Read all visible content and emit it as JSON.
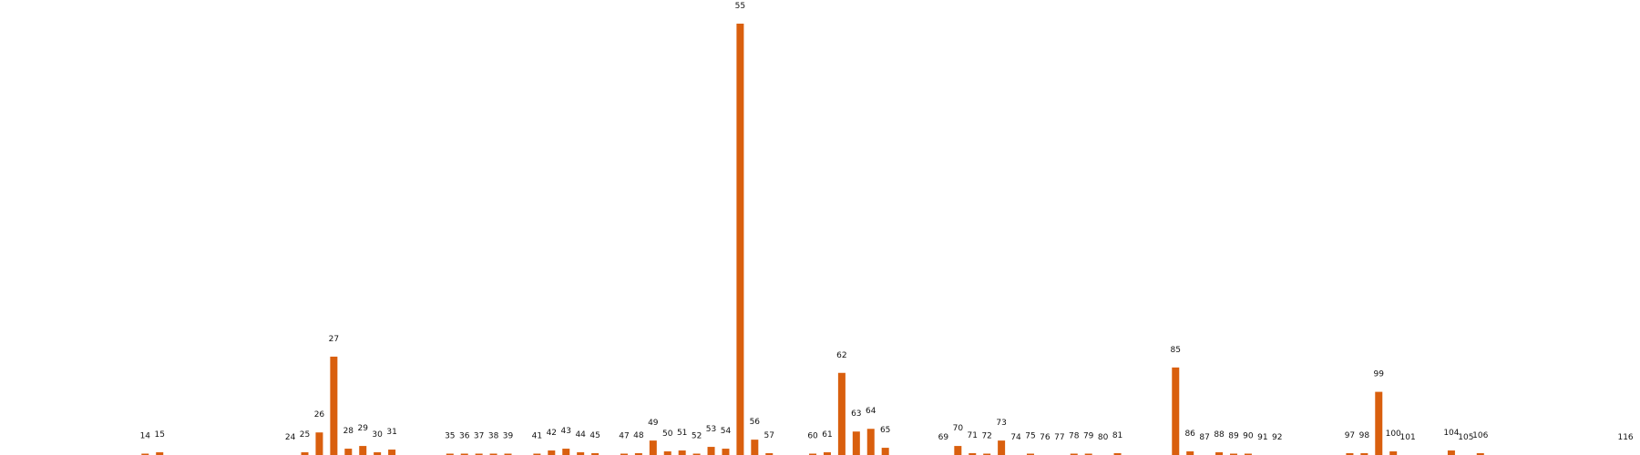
{
  "chart_data": {
    "type": "bar",
    "title": "",
    "xlabel": "",
    "ylabel": "",
    "grid": false,
    "legend": "none",
    "bar_color": "#d95f0e",
    "x_range": [
      4,
      117
    ],
    "ylim": [
      0,
      480
    ],
    "x": [
      14,
      15,
      24,
      25,
      26,
      27,
      28,
      29,
      30,
      31,
      35,
      36,
      37,
      38,
      39,
      41,
      42,
      43,
      44,
      45,
      47,
      48,
      49,
      50,
      51,
      52,
      53,
      54,
      55,
      56,
      57,
      60,
      61,
      62,
      63,
      64,
      65,
      69,
      70,
      71,
      72,
      73,
      74,
      75,
      76,
      77,
      78,
      79,
      80,
      81,
      85,
      86,
      87,
      88,
      89,
      90,
      91,
      92,
      97,
      98,
      99,
      100,
      101,
      104,
      105,
      106,
      116
    ],
    "labels": [
      "14",
      "15",
      "24",
      "25",
      "26",
      "27",
      "28",
      "29",
      "30",
      "31",
      "35",
      "36",
      "37",
      "38",
      "39",
      "41",
      "42",
      "43",
      "44",
      "45",
      "47",
      "48",
      "49",
      "50",
      "51",
      "52",
      "53",
      "54",
      "55",
      "56",
      "57",
      "60",
      "61",
      "62",
      "63",
      "64",
      "65",
      "69",
      "70",
      "71",
      "72",
      "73",
      "74",
      "75",
      "76",
      "77",
      "78",
      "79",
      "80",
      "81",
      "85",
      "86",
      "87",
      "88",
      "89",
      "90",
      "91",
      "92",
      "97",
      "98",
      "99",
      "100",
      "101",
      "104",
      "105",
      "106",
      "116"
    ],
    "values": [
      1,
      3,
      0,
      3,
      25,
      109,
      7,
      10,
      3,
      6,
      1,
      1,
      1,
      1,
      1,
      1,
      5,
      7,
      3,
      2,
      1,
      2,
      16,
      4,
      5,
      1,
      9,
      7,
      478,
      17,
      2,
      1,
      3,
      91,
      26,
      29,
      8,
      0,
      10,
      2,
      1,
      16,
      0,
      1,
      0,
      0,
      1,
      1,
      0,
      2,
      97,
      4,
      0,
      3,
      1,
      1,
      0,
      0,
      2,
      2,
      70,
      4,
      0,
      5,
      0,
      2,
      0
    ]
  }
}
